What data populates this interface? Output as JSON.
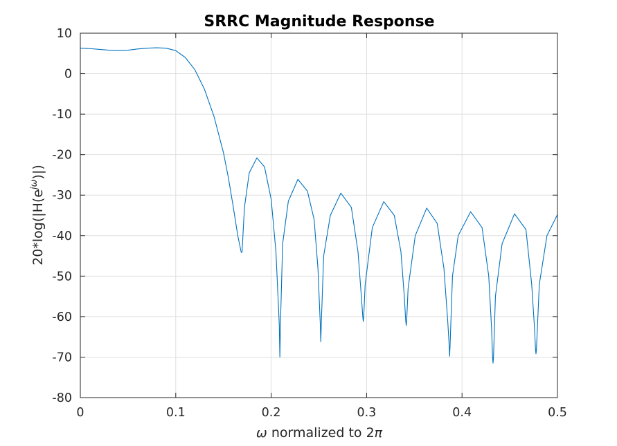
{
  "chart_data": {
    "type": "line",
    "title": "SRRC Magnitude Response",
    "xlabel": {
      "symbol": "ω",
      "text": " normalized to 2",
      "pi": "π"
    },
    "ylabel": {
      "prefix": "20*log(|H(e",
      "superscript": "jω",
      "suffix": ")|)"
    },
    "xlim": [
      0,
      0.5
    ],
    "ylim": [
      -80,
      10
    ],
    "grid": true,
    "x_ticks": [
      0,
      0.1,
      0.2,
      0.3,
      0.4,
      0.5
    ],
    "x_tick_labels": [
      "0",
      "0.1",
      "0.2",
      "0.3",
      "0.4",
      "0.5"
    ],
    "y_ticks": [
      10,
      0,
      -10,
      -20,
      -30,
      -40,
      -50,
      -60,
      -70,
      -80
    ],
    "y_tick_labels": [
      "10",
      "0",
      "-10",
      "-20",
      "-30",
      "-40",
      "-50",
      "-60",
      "-70",
      "-80"
    ],
    "series": [
      {
        "color": "#0072bd",
        "x": [
          0,
          0.01,
          0.02,
          0.03,
          0.04,
          0.05,
          0.06,
          0.07,
          0.08,
          0.09,
          0.1,
          0.11,
          0.12,
          0.13,
          0.14,
          0.15,
          0.155,
          0.16,
          0.165,
          0.1685,
          0.169,
          0.1695,
          0.172,
          0.177,
          0.185,
          0.193,
          0.2,
          0.205,
          0.2085,
          0.2091,
          0.2097,
          0.212,
          0.218,
          0.228,
          0.238,
          0.245,
          0.249,
          0.2515,
          0.252,
          0.2525,
          0.255,
          0.262,
          0.273,
          0.284,
          0.291,
          0.2945,
          0.296,
          0.2965,
          0.297,
          0.2985,
          0.306,
          0.318,
          0.329,
          0.336,
          0.3395,
          0.341,
          0.3415,
          0.342,
          0.3435,
          0.351,
          0.363,
          0.374,
          0.381,
          0.385,
          0.3865,
          0.387,
          0.3875,
          0.39,
          0.396,
          0.409,
          0.421,
          0.428,
          0.431,
          0.432,
          0.4325,
          0.433,
          0.435,
          0.442,
          0.455,
          0.467,
          0.473,
          0.476,
          0.477,
          0.4775,
          0.478,
          0.481,
          0.489,
          0.5
        ],
        "y": [
          6.3,
          6.2,
          6.0,
          5.8,
          5.7,
          5.8,
          6.1,
          6.3,
          6.4,
          6.3,
          5.7,
          4.0,
          1.0,
          -3.8,
          -10.5,
          -19.5,
          -25.5,
          -32.5,
          -40.0,
          -44.0,
          -44.2,
          -44.0,
          -33.0,
          -24.5,
          -20.8,
          -23.0,
          -31.0,
          -44.0,
          -62.0,
          -70.0,
          -62.0,
          -42.0,
          -31.5,
          -26.1,
          -29.0,
          -36.0,
          -48.0,
          -62.0,
          -66.2,
          -62.0,
          -45.0,
          -35.0,
          -29.5,
          -33.0,
          -44.0,
          -55.0,
          -60.0,
          -61.2,
          -60.0,
          -52.0,
          -38.0,
          -31.6,
          -35.0,
          -44.0,
          -55.0,
          -61.0,
          -62.2,
          -61.0,
          -53.0,
          -40.0,
          -33.2,
          -37.0,
          -48.0,
          -61.0,
          -67.0,
          -69.8,
          -67.0,
          -50.0,
          -40.0,
          -34.1,
          -38.0,
          -50.0,
          -63.0,
          -70.0,
          -71.5,
          -70.0,
          -55.0,
          -42.0,
          -34.6,
          -38.5,
          -52.0,
          -63.0,
          -68.0,
          -69.2,
          -68.0,
          -52.0,
          -40.0,
          -34.8
        ]
      }
    ]
  }
}
